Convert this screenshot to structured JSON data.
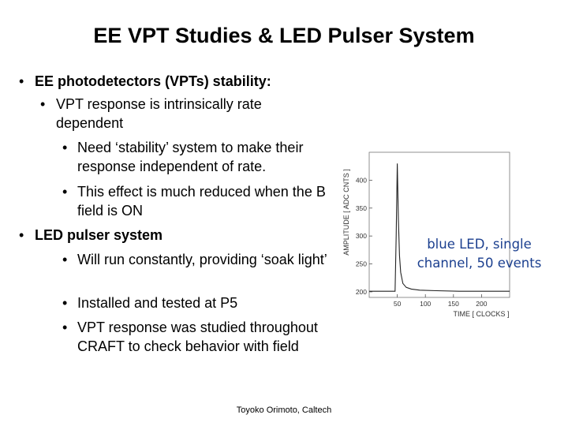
{
  "title": "EE VPT Studies & LED Pulser System",
  "bullets": [
    {
      "text": "EE photodetectors (VPTs) stability:"
    },
    {
      "text": "VPT response is intrinsically rate dependent"
    },
    {
      "text": "Need ‘stability’ system to make their response independent of rate."
    },
    {
      "text": "This effect is much reduced when the B field is ON"
    },
    {
      "text": "LED pulser system"
    },
    {
      "text": "Will run constantly, providing ‘soak light’"
    },
    {
      "text": "Installed and tested at P5"
    },
    {
      "text": "VPT response was studied throughout CRAFT to check behavior with field"
    }
  ],
  "footer": "Toyoko Orimoto, Caltech",
  "callout": "blue LED, single channel, 50 events",
  "chart_data": {
    "type": "line",
    "title": "",
    "xlabel": "TIME [ CLOCKS ]",
    "ylabel": "AMPLITUDE [ ADC CNTS ]",
    "xlim": [
      0,
      250
    ],
    "ylim": [
      190,
      450
    ],
    "x_ticks": [
      50,
      100,
      150,
      200
    ],
    "y_ticks": [
      200,
      250,
      300,
      350,
      400
    ],
    "x": [
      0,
      20,
      40,
      46,
      48,
      50,
      52,
      54,
      56,
      60,
      66,
      75,
      90,
      120,
      160,
      200,
      240,
      250
    ],
    "series": [
      {
        "values": [
          201,
          201,
          201,
          201,
          300,
          430,
          330,
          265,
          235,
          215,
          208,
          205,
          203,
          202,
          201,
          201,
          201,
          201
        ]
      }
    ]
  }
}
